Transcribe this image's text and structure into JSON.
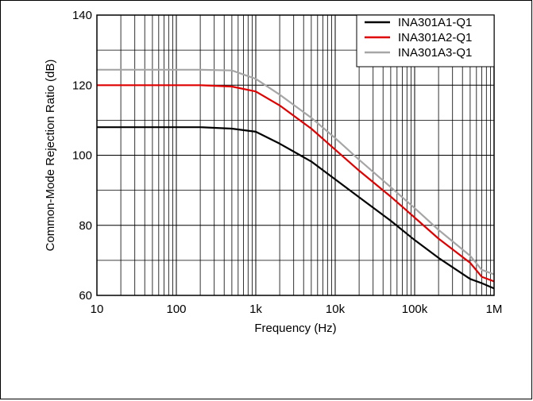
{
  "chart_data": {
    "type": "line",
    "xlabel": "Frequency (Hz)",
    "ylabel": "Common-Mode Rejection Ratio (dB)",
    "xscale": "log",
    "xlim": [
      10,
      1000000
    ],
    "ylim": [
      60,
      140
    ],
    "x_ticks": [
      10,
      100,
      1000,
      10000,
      100000,
      1000000
    ],
    "x_tick_labels": [
      "10",
      "100",
      "1k",
      "10k",
      "100k",
      "1M"
    ],
    "y_ticks": [
      60,
      80,
      100,
      120,
      140
    ],
    "y_tick_labels": [
      "60",
      "80",
      "100",
      "120",
      "140"
    ],
    "grid": true,
    "legend_position": "top-right",
    "series": [
      {
        "name": "INA301A1-Q1",
        "color": "#000000",
        "points": [
          [
            10,
            108
          ],
          [
            100,
            108
          ],
          [
            200,
            108
          ],
          [
            500,
            107.6
          ],
          [
            1000,
            106.7
          ],
          [
            2000,
            103.3
          ],
          [
            5000,
            98.2
          ],
          [
            10000,
            93.1
          ],
          [
            20000,
            88
          ],
          [
            50000,
            81.3
          ],
          [
            100000,
            75.8
          ],
          [
            200000,
            70.7
          ],
          [
            500000,
            64.7
          ],
          [
            700000,
            63.5
          ],
          [
            1000000,
            62
          ]
        ]
      },
      {
        "name": "INA301A2-Q1",
        "color": "#e00000",
        "points": [
          [
            10,
            120
          ],
          [
            100,
            120
          ],
          [
            200,
            120
          ],
          [
            500,
            119.6
          ],
          [
            1000,
            118.2
          ],
          [
            2000,
            114.2
          ],
          [
            5000,
            107.6
          ],
          [
            10000,
            101.6
          ],
          [
            20000,
            95.6
          ],
          [
            50000,
            88.2
          ],
          [
            100000,
            82.2
          ],
          [
            200000,
            76.2
          ],
          [
            500000,
            69.3
          ],
          [
            700000,
            65.3
          ],
          [
            1000000,
            64
          ]
        ]
      },
      {
        "name": "INA301A3-Q1",
        "color": "#a6a6a6",
        "points": [
          [
            10,
            124.4
          ],
          [
            100,
            124.4
          ],
          [
            200,
            124.4
          ],
          [
            500,
            124.2
          ],
          [
            1000,
            121.8
          ],
          [
            2000,
            117.3
          ],
          [
            5000,
            110.7
          ],
          [
            10000,
            104.9
          ],
          [
            20000,
            98.7
          ],
          [
            50000,
            90.9
          ],
          [
            100000,
            84.9
          ],
          [
            200000,
            78.7
          ],
          [
            500000,
            71.3
          ],
          [
            700000,
            67.3
          ],
          [
            1000000,
            66
          ]
        ]
      }
    ]
  }
}
